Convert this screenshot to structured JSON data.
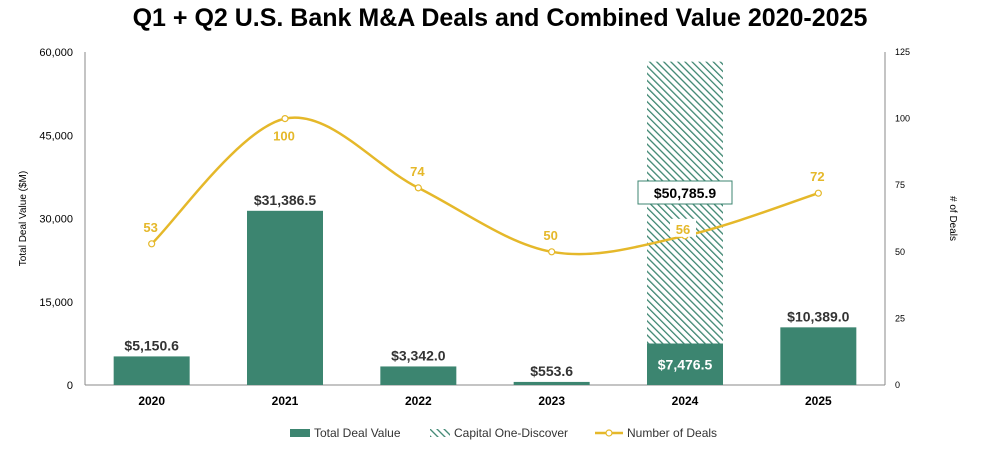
{
  "chart_data": {
    "type": "bar",
    "title": "Q1 + Q2 U.S. Bank M&A Deals and Combined Value 2020-2025",
    "categories": [
      "2020",
      "2021",
      "2022",
      "2023",
      "2024",
      "2025"
    ],
    "ylabel": "Total Deal Value ($M)",
    "y2label": "# of Deals",
    "ylim": [
      0,
      60000
    ],
    "y2lim": [
      0,
      125
    ],
    "yticks": [
      "0",
      "15,000",
      "30,000",
      "45,000",
      "60,000"
    ],
    "y2ticks": [
      "0",
      "25",
      "50",
      "75",
      "100",
      "125"
    ],
    "series": [
      {
        "name": "Total Deal Value",
        "type": "bar",
        "color": "#3C8570",
        "values": [
          5150.6,
          31386.5,
          3342.0,
          553.6,
          7476.5,
          10389.0
        ],
        "labels": [
          "$5,150.6",
          "$31,386.5",
          "$3,342.0",
          "$553.6",
          "$7,476.5",
          "$10,389.0"
        ]
      },
      {
        "name": "Capital One-Discover",
        "type": "bar-stacked-hatched",
        "color": "#3C8570",
        "values": [
          0,
          0,
          0,
          0,
          50785.9,
          0
        ],
        "labels": [
          "",
          "",
          "",
          "",
          "$50,785.9",
          ""
        ]
      },
      {
        "name": "Number of Deals",
        "type": "line",
        "axis": "secondary",
        "color": "#E5B82A",
        "values": [
          53,
          100,
          74,
          50,
          56,
          72
        ],
        "labels": [
          "53",
          "100",
          "74",
          "50",
          "56",
          "72"
        ]
      }
    ],
    "legend_position": "bottom",
    "grid": false
  }
}
